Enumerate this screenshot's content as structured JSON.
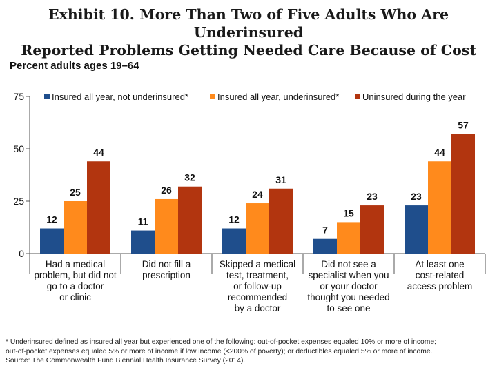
{
  "title_line1": "Exhibit 10. More Than Two of Five Adults Who Are Underinsured",
  "title_line2": "Reported Problems Getting Needed Care Because of Cost",
  "footnotes": [
    "* Underinsured defined as insured all year but experienced one of the following: out-of-pocket expenses equaled 10% or more of income;",
    "out-of-pocket expenses equaled 5% or more of income if low income (<200% of poverty); or deductibles equaled 5% or more of income.",
    "Source: The Commonwealth Fund Biennial Health Insurance Survey (2014)."
  ],
  "colors": {
    "insured_not_underinsured": "#1f4e8c",
    "insured_underinsured": "#ff8a1c",
    "uninsured": "#b2350f"
  },
  "chart_data": {
    "type": "bar",
    "title": "",
    "ylabel": "Percent adults ages 19–64",
    "xlabel": "",
    "ylim": [
      0,
      75
    ],
    "yticks": [
      "0",
      "25",
      "50",
      "75"
    ],
    "legend_position": "top",
    "categories": [
      [
        "Had a medical",
        "problem, but did not",
        "go to a doctor",
        "or clinic"
      ],
      [
        "Did not fill a",
        "prescription"
      ],
      [
        "Skipped a medical",
        "test, treatment,",
        "or follow-up",
        "recommended",
        "by a doctor"
      ],
      [
        "Did not see a",
        "specialist when you",
        "or your doctor",
        "thought you needed",
        "to see one"
      ],
      [
        "At least one",
        "cost-related",
        "access problem"
      ]
    ],
    "series": [
      {
        "name": "Insured all year, not underinsured*",
        "values": [
          12,
          11,
          12,
          7,
          23
        ]
      },
      {
        "name": "Insured all year, underinsured*",
        "values": [
          25,
          26,
          24,
          15,
          44
        ]
      },
      {
        "name": "Uninsured during the year",
        "values": [
          44,
          32,
          31,
          23,
          57
        ]
      }
    ]
  }
}
